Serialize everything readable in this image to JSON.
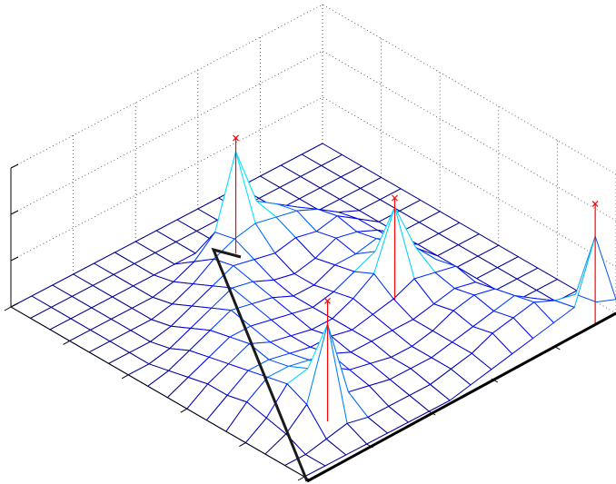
{
  "chart_data": {
    "type": "mesh3d",
    "x": [
      0,
      1,
      2,
      3,
      4,
      5,
      6,
      7,
      8,
      9,
      10,
      11,
      12,
      13,
      14,
      15
    ],
    "y": [
      0,
      1,
      2,
      3,
      4,
      5,
      6,
      7,
      8,
      9,
      10,
      11,
      12,
      13,
      14,
      15
    ],
    "z": [
      [
        0,
        0,
        0,
        0,
        0,
        0,
        0,
        0,
        0,
        0,
        0,
        0,
        0,
        0,
        0,
        0.3
      ],
      [
        0,
        0,
        0,
        0,
        0,
        0,
        0,
        0,
        0,
        0,
        0,
        0,
        0,
        0,
        0.4,
        1.9
      ],
      [
        0,
        0,
        0,
        0,
        0,
        0,
        0,
        0,
        0,
        0,
        0,
        0,
        0,
        0.3,
        0.5,
        0.6
      ],
      [
        0,
        0,
        0,
        0,
        0.2,
        0.3,
        0.3,
        0.3,
        0.4,
        0.4,
        0.5,
        0.4,
        0.5,
        0.6,
        0.7,
        0.5
      ],
      [
        0,
        0,
        0,
        0.3,
        0.5,
        0.6,
        0.5,
        0.6,
        0.7,
        0.9,
        0.6,
        0.5,
        0.6,
        0.5,
        0.6,
        0.4
      ],
      [
        0,
        0,
        0,
        0.6,
        0.7,
        0.5,
        0.6,
        0.5,
        0.8,
        2.0,
        0.7,
        0.4,
        0.5,
        0.4,
        0.5,
        0.3
      ],
      [
        0,
        0,
        0,
        0.9,
        0.8,
        0.6,
        0.4,
        0.5,
        0.6,
        0.8,
        0.5,
        0.3,
        0.3,
        0.3,
        0.3,
        0.2
      ],
      [
        0,
        0,
        0,
        2.2,
        0.9,
        0.5,
        0.3,
        0.3,
        0.4,
        0.5,
        0.4,
        0.3,
        0.2,
        0.2,
        0.2,
        0.1
      ],
      [
        0,
        0,
        0,
        0.7,
        0.8,
        0.6,
        0.4,
        0.3,
        0.3,
        0.3,
        0.3,
        0.3,
        0.2,
        0.2,
        0.1,
        0
      ],
      [
        0,
        0,
        0,
        0.3,
        0.6,
        0.7,
        0.6,
        0.5,
        0.4,
        0.3,
        0.4,
        0.3,
        0.3,
        0.2,
        0.1,
        0
      ],
      [
        0,
        0,
        0,
        0.1,
        0.3,
        0.5,
        0.7,
        0.6,
        0.5,
        0.4,
        0.4,
        0.5,
        0.4,
        0.3,
        0.1,
        0
      ],
      [
        0,
        0,
        0,
        0,
        0.1,
        0.3,
        0.5,
        0.7,
        0.6,
        0.5,
        0.5,
        0.6,
        0.7,
        0.4,
        0.1,
        0
      ],
      [
        0,
        0,
        0,
        0,
        0,
        0.1,
        0.3,
        0.5,
        0.6,
        0.7,
        0.6,
        0.7,
        0.9,
        2.1,
        0.2,
        0
      ],
      [
        0,
        0,
        0,
        0,
        0,
        0,
        0.1,
        0.3,
        0.4,
        0.5,
        0.6,
        0.7,
        0.8,
        0.6,
        0.1,
        0
      ],
      [
        0,
        0,
        0,
        0,
        0,
        0,
        0,
        0.1,
        0.2,
        0.3,
        0.3,
        0.4,
        0.3,
        0.2,
        0,
        0
      ],
      [
        0,
        0,
        0,
        0,
        0,
        0,
        0,
        0,
        0,
        0,
        0,
        0,
        0,
        0,
        0,
        0
      ]
    ],
    "colormap": [
      "#00008f",
      "#0000ff",
      "#00c8ff",
      "#00ffff"
    ],
    "markers": {
      "color": "#ff0000",
      "x": [
        3,
        9,
        15,
        13
      ],
      "y": [
        7,
        5,
        1,
        12
      ],
      "z": [
        2.5,
        2.2,
        2.6,
        2.6
      ]
    },
    "xlim": [
      0,
      15
    ],
    "ylim": [
      0,
      15
    ],
    "zlim": [
      0,
      3
    ],
    "xticks": [
      0,
      3,
      6,
      9,
      12,
      15
    ],
    "yticks": [
      0,
      3,
      6,
      9,
      12,
      15
    ],
    "zticks": [
      0,
      1,
      2,
      3
    ],
    "grid": true
  }
}
